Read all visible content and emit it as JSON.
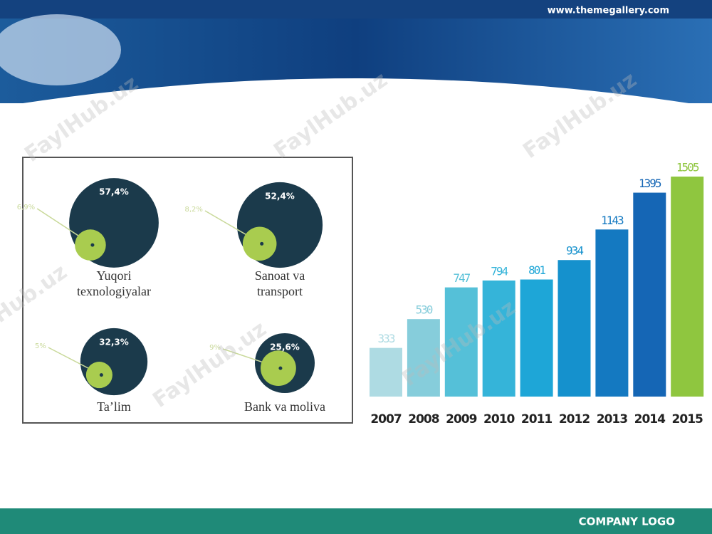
{
  "header": {
    "url": "www.themegallery.com"
  },
  "footer": {
    "logo": "COMPANY LOGO"
  },
  "watermark": "FaylHub.uz",
  "chart_data": [
    {
      "type": "bubble",
      "categories": [
        "Yuqori texnologiyalar",
        "Sanoat va transport",
        "Ta’lim",
        "Bank va moliva"
      ],
      "values": [
        57.4,
        52.4,
        32.3,
        25.6
      ],
      "value_labels": [
        "57,4%",
        "52,4%",
        "32,3%",
        "25,6%"
      ],
      "inner_values": [
        6.9,
        8.2,
        5,
        9
      ],
      "inner_value_labels": [
        "6,9%",
        "8,2%",
        "5%",
        "9%"
      ],
      "color": "#1b3a4b",
      "inner_color": "#a9cc4f"
    },
    {
      "type": "bar",
      "categories": [
        "2007",
        "2008",
        "2009",
        "2010",
        "2011",
        "2012",
        "2013",
        "2014",
        "2015"
      ],
      "values": [
        333,
        530,
        747,
        794,
        801,
        934,
        1143,
        1395,
        1505
      ],
      "colors": [
        "#aedbe3",
        "#86cddb",
        "#55c0d8",
        "#35b4d9",
        "#1ea6d7",
        "#1591cd",
        "#1479c1",
        "#1566b5",
        "#8fc63f"
      ]
    }
  ]
}
